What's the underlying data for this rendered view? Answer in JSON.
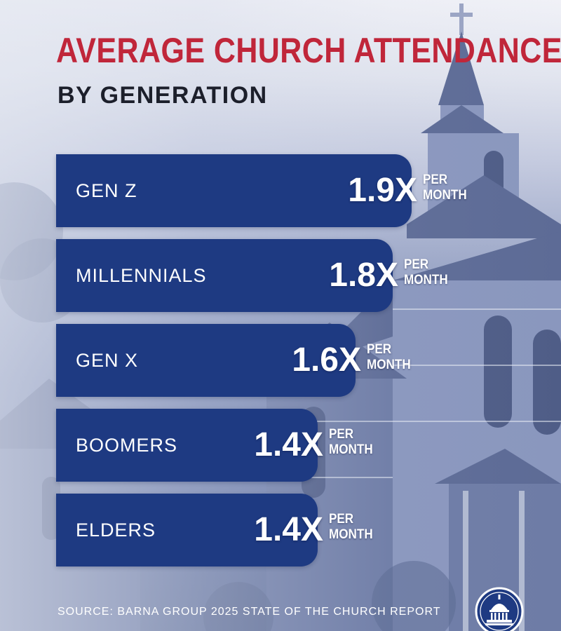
{
  "title": "AVERAGE CHURCH ATTENDANCE",
  "subtitle": "BY GENERATION",
  "source": "SOURCE: BARNA GROUP 2025 STATE OF THE CHURCH REPORT",
  "colors": {
    "title": "#c0263a",
    "bar": "#1e3a82",
    "subtitle": "#1c1f2b",
    "text_on_bar": "#ffffff"
  },
  "chart_data": {
    "type": "bar",
    "orientation": "horizontal",
    "title": "AVERAGE CHURCH ATTENDANCE",
    "subtitle": "BY GENERATION",
    "categories": [
      "GEN Z",
      "MILLENNIALS",
      "GEN X",
      "BOOMERS",
      "ELDERS"
    ],
    "values": [
      1.9,
      1.8,
      1.6,
      1.4,
      1.4
    ],
    "value_labels": [
      "1.9X",
      "1.8X",
      "1.6X",
      "1.4X",
      "1.4X"
    ],
    "unit_line1": "PER",
    "unit_line2": "MONTH",
    "xlabel": "",
    "ylabel": "",
    "xlim": [
      0,
      2.25
    ],
    "grid": false,
    "source": "SOURCE: BARNA GROUP 2025 STATE OF THE CHURCH REPORT"
  },
  "logo": {
    "icon": "capitol-dome-icon"
  }
}
